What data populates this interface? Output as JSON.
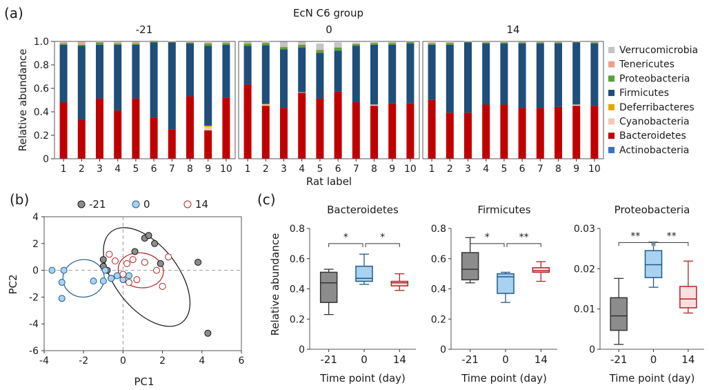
{
  "panel_labels": {
    "a": "(a)",
    "b": "(b)",
    "c": "(c)"
  },
  "colors": {
    "Verrucomicrobia": "#c4c4c4",
    "Tenericutes": "#f0a08c",
    "Proteobacteria": "#5aa03c",
    "Firmicutes": "#1f4e79",
    "Deferribacteres": "#e5a800",
    "Cyanobacteria": "#f6c9b0",
    "Bacteroidetes": "#c00000",
    "Actinobacteria": "#3a6fc2",
    "grey_group": "#7f7f7f",
    "blue_group": "#1f5a8c",
    "red_group": "#b22222",
    "grey_fill": "#8c8c8c",
    "blue_fill": "#a9d2f0",
    "red_fill": "#fbe0e0"
  },
  "chart_data": [
    {
      "id": "a",
      "type": "bar",
      "stacked": true,
      "title": "EcN C6 group",
      "ylabel": "Relative abundance",
      "xlabel": "Rat label",
      "ylim": [
        0,
        1.0
      ],
      "yticks": [
        "0",
        "0.2",
        "0.4",
        "0.6",
        "0.8",
        "1.0"
      ],
      "categories": [
        "1",
        "2",
        "3",
        "4",
        "5",
        "6",
        "7",
        "8",
        "9",
        "10"
      ],
      "legend": [
        "Verrucomicrobia",
        "Tenericutes",
        "Proteobacteria",
        "Firmicutes",
        "Deferribacteres",
        "Cyanobacteria",
        "Bacteroidetes",
        "Actinobacteria"
      ],
      "legend_position": "right",
      "stack_order": [
        "Actinobacteria",
        "Bacteroidetes",
        "Cyanobacteria",
        "Deferribacteres",
        "Firmicutes",
        "Proteobacteria",
        "Tenericutes",
        "Verrucomicrobia"
      ],
      "subplots": [
        {
          "title": "-21",
          "series": [
            {
              "name": "Actinobacteria",
              "values": [
                0.002,
                0.002,
                0.002,
                0.002,
                0.002,
                0.002,
                0.002,
                0.002,
                0.002,
                0.002
              ]
            },
            {
              "name": "Bacteroidetes",
              "values": [
                0.48,
                0.33,
                0.51,
                0.41,
                0.51,
                0.35,
                0.25,
                0.53,
                0.24,
                0.52
              ]
            },
            {
              "name": "Cyanobacteria",
              "values": [
                0,
                0,
                0,
                0,
                0,
                0,
                0,
                0,
                0.03,
                0
              ]
            },
            {
              "name": "Deferribacteres",
              "values": [
                0,
                0,
                0,
                0,
                0,
                0,
                0,
                0,
                0.01,
                0
              ]
            },
            {
              "name": "Firmicutes",
              "values": [
                0.49,
                0.63,
                0.46,
                0.56,
                0.46,
                0.64,
                0.74,
                0.45,
                0.68,
                0.45
              ]
            },
            {
              "name": "Proteobacteria",
              "values": [
                0.01,
                0.01,
                0.02,
                0.01,
                0.01,
                0.01,
                0.005,
                0.01,
                0.02,
                0.015
              ]
            },
            {
              "name": "Tenericutes",
              "values": [
                0.01,
                0.02,
                0.005,
                0.01,
                0.01,
                0.003,
                0.003,
                0.005,
                0.01,
                0.005
              ]
            },
            {
              "name": "Verrucomicrobia",
              "values": [
                0.003,
                0.005,
                0.003,
                0.003,
                0.005,
                0.003,
                0.003,
                0.003,
                0.008,
                0.003
              ]
            }
          ]
        },
        {
          "title": "0",
          "series": [
            {
              "name": "Actinobacteria",
              "values": [
                0.002,
                0.002,
                0.002,
                0.002,
                0.002,
                0.002,
                0.002,
                0.002,
                0.002,
                0.002
              ]
            },
            {
              "name": "Bacteroidetes",
              "values": [
                0.63,
                0.45,
                0.43,
                0.56,
                0.51,
                0.57,
                0.48,
                0.45,
                0.47,
                0.47
              ]
            },
            {
              "name": "Cyanobacteria",
              "values": [
                0,
                0.01,
                0,
                0.005,
                0,
                0,
                0,
                0.01,
                0,
                0
              ]
            },
            {
              "name": "Deferribacteres",
              "values": [
                0,
                0.005,
                0,
                0,
                0,
                0,
                0,
                0,
                0,
                0
              ]
            },
            {
              "name": "Firmicutes",
              "values": [
                0.33,
                0.5,
                0.5,
                0.38,
                0.39,
                0.35,
                0.48,
                0.51,
                0.5,
                0.51
              ]
            },
            {
              "name": "Proteobacteria",
              "values": [
                0.02,
                0.02,
                0.02,
                0.025,
                0.025,
                0.025,
                0.015,
                0.015,
                0.015,
                0.015
              ]
            },
            {
              "name": "Tenericutes",
              "values": [
                0.005,
                0.005,
                0.005,
                0.005,
                0.005,
                0.005,
                0.003,
                0.003,
                0.003,
                0.003
              ]
            },
            {
              "name": "Verrucomicrobia",
              "values": [
                0.01,
                0.01,
                0.04,
                0.02,
                0.05,
                0.04,
                0.01,
                0.01,
                0.005,
                0.005
              ]
            }
          ]
        },
        {
          "title": "14",
          "series": [
            {
              "name": "Actinobacteria",
              "values": [
                0.002,
                0.002,
                0.002,
                0.002,
                0.002,
                0.002,
                0.002,
                0.002,
                0.002,
                0.002
              ]
            },
            {
              "name": "Bacteroidetes",
              "values": [
                0.5,
                0.39,
                0.39,
                0.46,
                0.46,
                0.43,
                0.43,
                0.44,
                0.45,
                0.45
              ]
            },
            {
              "name": "Cyanobacteria",
              "values": [
                0,
                0,
                0,
                0,
                0,
                0,
                0,
                0,
                0.01,
                0
              ]
            },
            {
              "name": "Deferribacteres",
              "values": [
                0,
                0,
                0,
                0,
                0,
                0,
                0,
                0,
                0,
                0
              ]
            },
            {
              "name": "Firmicutes",
              "values": [
                0.47,
                0.58,
                0.6,
                0.52,
                0.52,
                0.55,
                0.55,
                0.54,
                0.53,
                0.53
              ]
            },
            {
              "name": "Proteobacteria",
              "values": [
                0.01,
                0.015,
                0.005,
                0.01,
                0.01,
                0.01,
                0.01,
                0.01,
                0.005,
                0.01
              ]
            },
            {
              "name": "Tenericutes",
              "values": [
                0.01,
                0.005,
                0.003,
                0.005,
                0.005,
                0.003,
                0.003,
                0.003,
                0.003,
                0.003
              ]
            },
            {
              "name": "Verrucomicrobia",
              "values": [
                0.008,
                0.008,
                0.002,
                0.003,
                0.003,
                0.003,
                0.003,
                0.003,
                0.003,
                0.003
              ]
            }
          ]
        }
      ]
    },
    {
      "id": "b",
      "type": "scatter",
      "xlabel": "PC1",
      "ylabel": "PC2",
      "xlim": [
        -4,
        6
      ],
      "ylim": [
        -6,
        4
      ],
      "xticks": [
        "-4",
        "-2",
        "0",
        "2",
        "4",
        "6"
      ],
      "yticks": [
        "-6",
        "-4",
        "-2",
        "0",
        "2",
        "4"
      ],
      "legend_position": "top",
      "series": [
        {
          "name": "-21",
          "points": [
            [
              -1.0,
              0.8
            ],
            [
              -1.0,
              0.3
            ],
            [
              -0.8,
              0.0
            ],
            [
              -0.6,
              -0.6
            ],
            [
              0.6,
              1.4
            ],
            [
              1.1,
              2.4
            ],
            [
              1.3,
              2.6
            ],
            [
              1.6,
              2.0
            ],
            [
              1.9,
              0.5
            ],
            [
              3.8,
              0.6
            ],
            [
              4.3,
              -4.7
            ]
          ]
        },
        {
          "name": "0",
          "points": [
            [
              -3.6,
              0.0
            ],
            [
              -3.0,
              0.0
            ],
            [
              -3.1,
              -0.9
            ],
            [
              -3.1,
              -2.1
            ],
            [
              -1.5,
              -0.8
            ],
            [
              -1.0,
              -0.8
            ],
            [
              -0.9,
              0.0
            ],
            [
              -0.6,
              -0.6
            ],
            [
              -0.3,
              -0.4
            ],
            [
              0.0,
              -0.7
            ],
            [
              0.3,
              -0.4
            ]
          ]
        },
        {
          "name": "14",
          "points": [
            [
              -0.7,
              1.2
            ],
            [
              -0.4,
              0.7
            ],
            [
              0.2,
              0.5
            ],
            [
              0.5,
              0.8
            ],
            [
              1.1,
              0.6
            ],
            [
              1.7,
              0.0
            ],
            [
              2.3,
              1.0
            ],
            [
              0.0,
              -0.3
            ],
            [
              0.7,
              -0.7
            ],
            [
              0.3,
              -0.9
            ],
            [
              2.0,
              -1.2
            ]
          ]
        }
      ],
      "ellipses": [
        {
          "group": "-21",
          "center": [
            1.2,
            -0.5
          ],
          "rx": 3.2,
          "ry": 4.3,
          "angle": -38
        },
        {
          "group": "0",
          "center": [
            -2.0,
            -0.6
          ],
          "rx": 2.1,
          "ry": 1.4,
          "angle": -5
        },
        {
          "group": "14",
          "center": [
            0.9,
            0.0
          ],
          "rx": 2.3,
          "ry": 1.3,
          "angle": 8
        }
      ]
    },
    {
      "id": "c",
      "type": "box",
      "ylabel": "Relative abundance",
      "xlabel": "Time point (day)",
      "categories": [
        "-21",
        "0",
        "14"
      ],
      "subplots": [
        {
          "title": "Bacteroidetes",
          "ylim": [
            0,
            0.8
          ],
          "yticks": [
            "0",
            "0.2",
            "0.4",
            "0.6",
            "0.8"
          ],
          "boxes": [
            {
              "min": 0.23,
              "q1": 0.31,
              "median": 0.44,
              "q3": 0.51,
              "max": 0.53
            },
            {
              "min": 0.43,
              "q1": 0.45,
              "median": 0.47,
              "q3": 0.55,
              "max": 0.63
            },
            {
              "min": 0.39,
              "q1": 0.42,
              "median": 0.44,
              "q3": 0.45,
              "max": 0.5
            }
          ],
          "significance": [
            {
              "from": 0,
              "to": 1,
              "label": "*"
            },
            {
              "from": 1,
              "to": 2,
              "label": "*"
            }
          ],
          "sig_level": 0.7
        },
        {
          "title": "Firmicutes",
          "ylim": [
            0,
            0.8
          ],
          "yticks": [
            "0",
            "0.2",
            "0.4",
            "0.6",
            "0.8"
          ],
          "boxes": [
            {
              "min": 0.44,
              "q1": 0.46,
              "median": 0.53,
              "q3": 0.64,
              "max": 0.74
            },
            {
              "min": 0.31,
              "q1": 0.37,
              "median": 0.48,
              "q3": 0.5,
              "max": 0.51
            },
            {
              "min": 0.45,
              "q1": 0.51,
              "median": 0.52,
              "q3": 0.54,
              "max": 0.58
            }
          ],
          "significance": [
            {
              "from": 0,
              "to": 1,
              "label": "*"
            },
            {
              "from": 1,
              "to": 2,
              "label": "**"
            }
          ],
          "sig_level": 0.7
        },
        {
          "title": "Proteobacteria",
          "ylim": [
            0,
            0.03
          ],
          "yticks": [
            "0",
            "0.01",
            "0.02",
            "0.03"
          ],
          "boxes": [
            {
              "min": 0.0012,
              "q1": 0.0047,
              "median": 0.0083,
              "q3": 0.0128,
              "max": 0.0176
            },
            {
              "min": 0.0154,
              "q1": 0.0178,
              "median": 0.021,
              "q3": 0.0245,
              "max": 0.0266
            },
            {
              "min": 0.009,
              "q1": 0.0103,
              "median": 0.0125,
              "q3": 0.0156,
              "max": 0.0219
            }
          ],
          "significance": [
            {
              "from": 0,
              "to": 1,
              "label": "**"
            },
            {
              "from": 1,
              "to": 2,
              "label": "**"
            }
          ],
          "sig_level": 0.0265
        }
      ]
    }
  ]
}
